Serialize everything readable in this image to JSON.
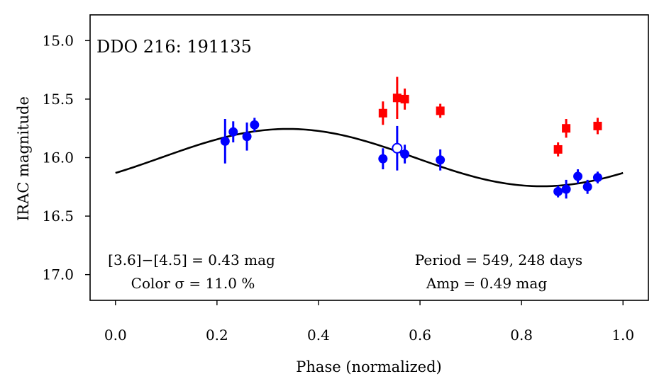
{
  "chart_data": {
    "type": "scatter",
    "title": "DDO 216:  191135",
    "xlabel": "Phase (normalized)",
    "ylabel": "IRAC magnitude",
    "xlim": [
      -0.05,
      1.05
    ],
    "ylim": [
      17.22,
      14.78
    ],
    "y_inverted": true,
    "xticks": [
      0.0,
      0.2,
      0.4,
      0.6,
      0.8,
      1.0
    ],
    "xtick_labels": [
      "0.0",
      "0.2",
      "0.4",
      "0.6",
      "0.8",
      "1.0"
    ],
    "yticks": [
      15.0,
      15.5,
      16.0,
      16.5,
      17.0
    ],
    "ytick_labels": [
      "15.0",
      "15.5",
      "16.0",
      "16.5",
      "17.0"
    ],
    "annotations": {
      "color_line1": "[3.6]−[4.5] = 0.43 mag",
      "color_line2": "Color σ = 11.0 %",
      "period_line1": "Period = 549, 248 days",
      "period_line2": "Amp = 0.49 mag"
    },
    "model": {
      "mean": 16.0,
      "amplitude": 0.245,
      "phase_of_min_mag": 0.34
    },
    "series": [
      {
        "name": "[3.6]",
        "color": "#0000ff",
        "marker": "circle",
        "points": [
          {
            "x": 0.216,
            "y": 15.86,
            "err": 0.19
          },
          {
            "x": 0.232,
            "y": 15.78,
            "err": 0.09
          },
          {
            "x": 0.259,
            "y": 15.82,
            "err": 0.12
          },
          {
            "x": 0.274,
            "y": 15.72,
            "err": 0.06
          },
          {
            "x": 0.527,
            "y": 16.01,
            "err": 0.09
          },
          {
            "x": 0.555,
            "y": 15.92,
            "err": 0.19,
            "open": true
          },
          {
            "x": 0.57,
            "y": 15.97,
            "err": 0.08
          },
          {
            "x": 0.64,
            "y": 16.02,
            "err": 0.09
          },
          {
            "x": 0.872,
            "y": 16.29,
            "err": 0.05
          },
          {
            "x": 0.888,
            "y": 16.27,
            "err": 0.08
          },
          {
            "x": 0.911,
            "y": 16.16,
            "err": 0.06
          },
          {
            "x": 0.93,
            "y": 16.25,
            "err": 0.06
          },
          {
            "x": 0.95,
            "y": 16.17,
            "err": 0.05
          }
        ]
      },
      {
        "name": "[4.5]",
        "color": "#ff0000",
        "marker": "square",
        "points": [
          {
            "x": 0.527,
            "y": 15.62,
            "err": 0.1
          },
          {
            "x": 0.555,
            "y": 15.49,
            "err": 0.18
          },
          {
            "x": 0.57,
            "y": 15.5,
            "err": 0.09
          },
          {
            "x": 0.64,
            "y": 15.6,
            "err": 0.06
          },
          {
            "x": 0.872,
            "y": 15.93,
            "err": 0.06
          },
          {
            "x": 0.888,
            "y": 15.75,
            "err": 0.08
          },
          {
            "x": 0.95,
            "y": 15.73,
            "err": 0.07
          }
        ]
      }
    ]
  }
}
